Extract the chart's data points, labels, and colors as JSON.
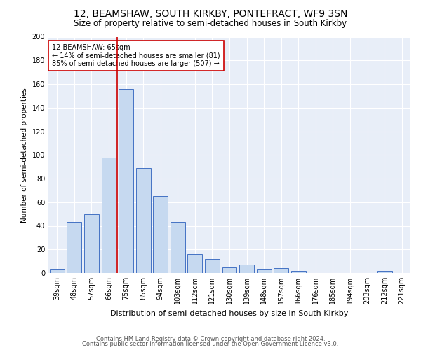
{
  "title": "12, BEAMSHAW, SOUTH KIRKBY, PONTEFRACT, WF9 3SN",
  "subtitle": "Size of property relative to semi-detached houses in South Kirkby",
  "xlabel": "Distribution of semi-detached houses by size in South Kirkby",
  "ylabel": "Number of semi-detached properties",
  "categories": [
    "39sqm",
    "48sqm",
    "57sqm",
    "66sqm",
    "75sqm",
    "85sqm",
    "94sqm",
    "103sqm",
    "112sqm",
    "121sqm",
    "130sqm",
    "139sqm",
    "148sqm",
    "157sqm",
    "166sqm",
    "176sqm",
    "185sqm",
    "194sqm",
    "203sqm",
    "212sqm",
    "221sqm"
  ],
  "values": [
    3,
    43,
    50,
    98,
    156,
    89,
    65,
    43,
    16,
    12,
    5,
    7,
    3,
    4,
    2,
    0,
    0,
    0,
    0,
    2,
    0
  ],
  "bar_color": "#c6d9f0",
  "bar_edge_color": "#4472c4",
  "vline_x": 3.5,
  "vline_color": "#cc0000",
  "annotation_text": "12 BEAMSHAW: 65sqm\n← 14% of semi-detached houses are smaller (81)\n85% of semi-detached houses are larger (507) →",
  "annotation_box_color": "#ffffff",
  "annotation_box_edge": "#cc0000",
  "ylim": [
    0,
    200
  ],
  "yticks": [
    0,
    20,
    40,
    60,
    80,
    100,
    120,
    140,
    160,
    180,
    200
  ],
  "footer1": "Contains HM Land Registry data © Crown copyright and database right 2024.",
  "footer2": "Contains public sector information licensed under the Open Government Licence v3.0.",
  "bg_color": "#e8eef8",
  "title_fontsize": 10,
  "subtitle_fontsize": 8.5,
  "xlabel_fontsize": 8,
  "ylabel_fontsize": 7.5,
  "footer_fontsize": 6,
  "annotation_fontsize": 7,
  "tick_fontsize": 7
}
